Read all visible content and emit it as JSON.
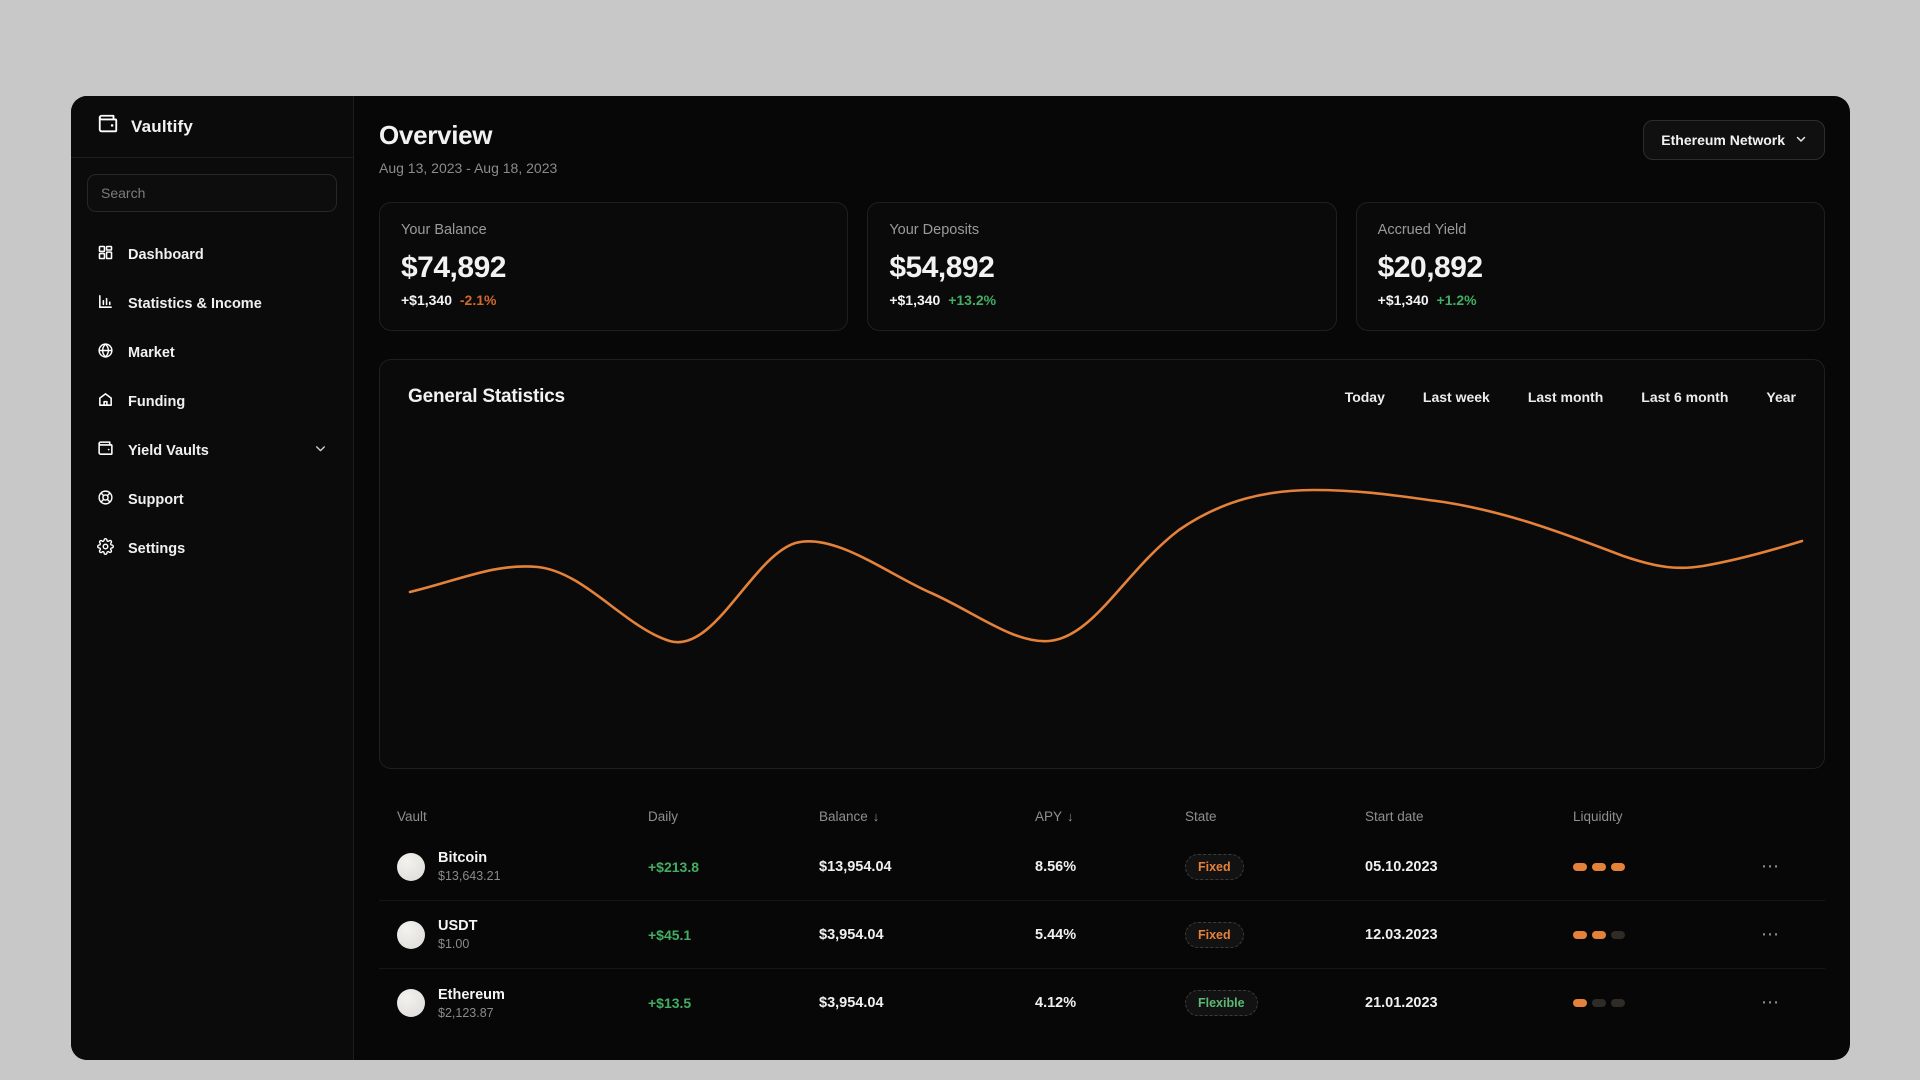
{
  "colors": {
    "accent_orange": "#e5823a",
    "negative_orange": "#cf6a2d",
    "positive_green": "#43ad62",
    "flexible_green": "#5cb874"
  },
  "sidebar": {
    "brand": "Vaultify",
    "search_placeholder": "Search",
    "items": [
      {
        "label": "Dashboard",
        "icon": "dashboard-icon"
      },
      {
        "label": "Statistics & Income",
        "icon": "bar-chart-icon"
      },
      {
        "label": "Market",
        "icon": "globe-icon"
      },
      {
        "label": "Funding",
        "icon": "home-icon"
      },
      {
        "label": "Yield Vaults",
        "icon": "wallet-icon",
        "has_chevron": true
      },
      {
        "label": "Support",
        "icon": "lifebuoy-icon"
      },
      {
        "label": "Settings",
        "icon": "gear-icon"
      }
    ]
  },
  "header": {
    "title": "Overview",
    "date_range": "Aug 13, 2023 - Aug 18, 2023",
    "network_selector": "Ethereum Network"
  },
  "stat_cards": [
    {
      "label": "Your Balance",
      "value": "$74,892",
      "delta": "+$1,340",
      "delta_pct": "-2.1%",
      "pct_color": "#cf6a2d"
    },
    {
      "label": "Your Deposits",
      "value": "$54,892",
      "delta": "+$1,340",
      "delta_pct": "+13.2%",
      "pct_color": "#43ad62"
    },
    {
      "label": "Accrued Yield",
      "value": "$20,892",
      "delta": "+$1,340",
      "delta_pct": "+1.2%",
      "pct_color": "#43ad62"
    }
  ],
  "chart_section": {
    "title": "General Statistics",
    "filters": [
      "Today",
      "Last week",
      "Last month",
      "Last 6 month",
      "Year"
    ],
    "line_color": "#e5823a"
  },
  "chart_data": {
    "type": "line",
    "title": "General Statistics",
    "axes_visible": false,
    "legend": null,
    "series": [
      {
        "name": "balance-trend",
        "points_pct_x_value": [
          [
            0,
            33
          ],
          [
            9,
            49
          ],
          [
            19,
            1
          ],
          [
            28,
            65
          ],
          [
            37,
            32
          ],
          [
            46,
            1
          ],
          [
            55,
            74
          ],
          [
            65,
            100
          ],
          [
            74,
            92
          ],
          [
            87,
            57
          ],
          [
            93,
            50
          ],
          [
            100,
            66
          ]
        ]
      }
    ]
  },
  "table": {
    "columns": [
      {
        "label": "Vault",
        "sorted": false
      },
      {
        "label": "Daily",
        "sorted": false
      },
      {
        "label": "Balance",
        "sorted": true
      },
      {
        "label": "APY",
        "sorted": true
      },
      {
        "label": "State",
        "sorted": false
      },
      {
        "label": "Start date",
        "sorted": false
      },
      {
        "label": "Liquidity",
        "sorted": false
      }
    ],
    "sort_icon": "↓",
    "more_icon": "⋯",
    "rows": [
      {
        "name": "Bitcoin",
        "price": "$13,643.21",
        "daily": "+$213.8",
        "balance": "$13,954.04",
        "apy": "8.56%",
        "state": "Fixed",
        "state_type": "fixed",
        "start_date": "05.10.2023",
        "liquidity_active": 3,
        "liquidity_total": 3
      },
      {
        "name": "USDT",
        "price": "$1.00",
        "daily": "+$45.1",
        "balance": "$3,954.04",
        "apy": "5.44%",
        "state": "Fixed",
        "state_type": "fixed",
        "start_date": "12.03.2023",
        "liquidity_active": 2,
        "liquidity_total": 3
      },
      {
        "name": "Ethereum",
        "price": "$2,123.87",
        "daily": "+$13.5",
        "balance": "$3,954.04",
        "apy": "4.12%",
        "state": "Flexible",
        "state_type": "flexible",
        "start_date": "21.01.2023",
        "liquidity_active": 1,
        "liquidity_total": 3
      }
    ]
  }
}
